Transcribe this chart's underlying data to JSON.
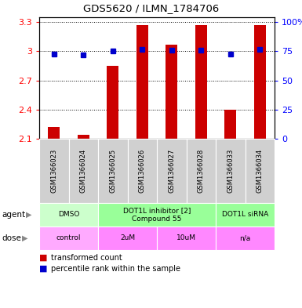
{
  "title": "GDS5620 / ILMN_1784706",
  "samples": [
    "GSM1366023",
    "GSM1366024",
    "GSM1366025",
    "GSM1366026",
    "GSM1366027",
    "GSM1366028",
    "GSM1366033",
    "GSM1366034"
  ],
  "bar_values": [
    2.22,
    2.14,
    2.85,
    3.27,
    3.07,
    3.27,
    2.4,
    3.27
  ],
  "dot_values": [
    2.97,
    2.96,
    3.0,
    3.02,
    3.01,
    3.01,
    2.97,
    3.02
  ],
  "ylim_left": [
    2.1,
    3.35
  ],
  "yticks_left": [
    2.1,
    2.4,
    2.7,
    3.0,
    3.3
  ],
  "ytick_labels_left": [
    "2.1",
    "2.4",
    "2.7",
    "3",
    "3.3"
  ],
  "yticks_right": [
    2.1,
    2.4,
    2.7,
    3.0,
    3.3
  ],
  "ytick_labels_right": [
    "0",
    "25",
    "50",
    "75",
    "100%"
  ],
  "bar_color": "#cc0000",
  "dot_color": "#0000cc",
  "gridline_color": "#000000",
  "agents": [
    {
      "label": "DMSO",
      "start": 0,
      "end": 2,
      "color": "#ccffcc"
    },
    {
      "label": "DOT1L inhibitor [2]\nCompound 55",
      "start": 2,
      "end": 6,
      "color": "#99ff99"
    },
    {
      "label": "DOT1L siRNA",
      "start": 6,
      "end": 8,
      "color": "#99ff99"
    }
  ],
  "doses": [
    {
      "label": "control",
      "start": 0,
      "end": 2,
      "color": "#ffaaff"
    },
    {
      "label": "2uM",
      "start": 2,
      "end": 4,
      "color": "#ff88ff"
    },
    {
      "label": "10uM",
      "start": 4,
      "end": 6,
      "color": "#ff88ff"
    },
    {
      "label": "n/a",
      "start": 6,
      "end": 8,
      "color": "#ff88ff"
    }
  ],
  "legend_bar_label": "transformed count",
  "legend_dot_label": "percentile rank within the sample",
  "sample_bg": "#d0d0d0",
  "fig_width": 3.85,
  "fig_height": 3.93,
  "dpi": 100
}
